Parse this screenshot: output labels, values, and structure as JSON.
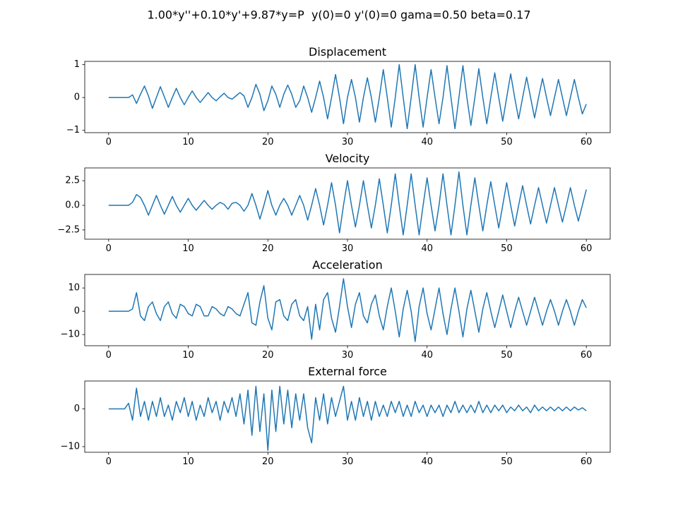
{
  "title": "1.00*y''+0.10*y'+9.87*y=P  y(0)=0 y'(0)=0 gama=0.50 beta=0.17",
  "chart_data": [
    {
      "type": "line",
      "title": "Displacement",
      "color": "#1f77b4",
      "x": [
        0,
        0.5,
        1,
        1.5,
        2,
        2.5,
        3,
        3.5,
        4,
        4.5,
        5,
        5.5,
        6,
        6.5,
        7,
        7.5,
        8,
        8.5,
        9,
        9.5,
        10,
        10.5,
        11,
        11.5,
        12,
        12.5,
        13,
        13.5,
        14,
        14.5,
        15,
        15.5,
        16,
        16.5,
        17,
        17.5,
        18,
        18.5,
        19,
        19.5,
        20,
        20.5,
        21,
        21.5,
        22,
        22.5,
        23,
        23.5,
        24,
        24.5,
        25,
        25.5,
        26,
        26.5,
        27,
        27.5,
        28,
        28.5,
        29,
        29.5,
        30,
        30.5,
        31,
        31.5,
        32,
        32.5,
        33,
        33.5,
        34,
        34.5,
        35,
        35.5,
        36,
        36.5,
        37,
        37.5,
        38,
        38.5,
        39,
        39.5,
        40,
        40.5,
        41,
        41.5,
        42,
        42.5,
        43,
        43.5,
        44,
        44.5,
        45,
        45.5,
        46,
        46.5,
        47,
        47.5,
        48,
        48.5,
        49,
        49.5,
        50,
        50.5,
        51,
        51.5,
        52,
        52.5,
        53,
        53.5,
        54,
        54.5,
        55,
        55.5,
        56,
        56.5,
        57,
        57.5,
        58,
        58.5,
        59,
        59.5,
        60
      ],
      "values": [
        0,
        0,
        0,
        0,
        0,
        0,
        0.08,
        -0.18,
        0.1,
        0.35,
        0.05,
        -0.33,
        0,
        0.33,
        0.02,
        -0.3,
        0,
        0.28,
        0,
        -0.22,
        0,
        0.2,
        0,
        -0.15,
        0,
        0.15,
        0,
        -0.1,
        0.02,
        0.13,
        0,
        -0.05,
        0.05,
        0.15,
        0.05,
        -0.3,
        0,
        0.4,
        0.1,
        -0.4,
        -0.1,
        0.35,
        0.1,
        -0.3,
        0.1,
        0.38,
        0.1,
        -0.3,
        -0.1,
        0.35,
        0,
        -0.45,
        0,
        0.5,
        0,
        -0.65,
        0,
        0.7,
        0,
        -0.8,
        0,
        0.55,
        0,
        -0.75,
        0,
        0.6,
        0,
        -0.75,
        0,
        0.85,
        0,
        -0.9,
        0,
        1.0,
        0,
        -0.95,
        0,
        1.0,
        0,
        -0.9,
        0,
        0.85,
        0,
        -0.8,
        0,
        0.97,
        0,
        -0.95,
        0,
        0.97,
        0,
        -0.85,
        0,
        0.88,
        0,
        -0.8,
        0,
        0.75,
        0,
        -0.72,
        0,
        0.72,
        0,
        -0.65,
        0,
        0.62,
        0,
        -0.62,
        0,
        0.58,
        0,
        -0.55,
        0,
        0.55,
        0,
        -0.55,
        0,
        0.55,
        0,
        -0.5,
        -0.2
      ],
      "xlim": [
        -3,
        63
      ],
      "xticks": [
        0,
        10,
        20,
        30,
        40,
        50,
        60
      ],
      "ylim": [
        -1.07,
        1.1
      ],
      "yticks": [
        {
          "value": -1,
          "label": "−1"
        },
        0,
        1
      ]
    },
    {
      "type": "line",
      "title": "Velocity",
      "color": "#1f77b4",
      "x": [
        0,
        0.5,
        1,
        1.5,
        2,
        2.5,
        3,
        3.5,
        4,
        4.5,
        5,
        5.5,
        6,
        6.5,
        7,
        7.5,
        8,
        8.5,
        9,
        9.5,
        10,
        10.5,
        11,
        11.5,
        12,
        12.5,
        13,
        13.5,
        14,
        14.5,
        15,
        15.5,
        16,
        16.5,
        17,
        17.5,
        18,
        18.5,
        19,
        19.5,
        20,
        20.5,
        21,
        21.5,
        22,
        22.5,
        23,
        23.5,
        24,
        24.5,
        25,
        25.5,
        26,
        26.5,
        27,
        27.5,
        28,
        28.5,
        29,
        29.5,
        30,
        30.5,
        31,
        31.5,
        32,
        32.5,
        33,
        33.5,
        34,
        34.5,
        35,
        35.5,
        36,
        36.5,
        37,
        37.5,
        38,
        38.5,
        39,
        39.5,
        40,
        40.5,
        41,
        41.5,
        42,
        42.5,
        43,
        43.5,
        44,
        44.5,
        45,
        45.5,
        46,
        46.5,
        47,
        47.5,
        48,
        48.5,
        49,
        49.5,
        50,
        50.5,
        51,
        51.5,
        52,
        52.5,
        53,
        53.5,
        54,
        54.5,
        55,
        55.5,
        56,
        56.5,
        57,
        57.5,
        58,
        58.5,
        59,
        59.5,
        60
      ],
      "values": [
        0,
        0,
        0,
        0,
        0,
        0,
        0.3,
        1.1,
        0.8,
        0,
        -1.0,
        0,
        1.0,
        0,
        -0.9,
        0,
        0.9,
        0,
        -0.7,
        0,
        0.7,
        0,
        -0.5,
        0,
        0.5,
        0,
        -0.4,
        0,
        0.3,
        0.1,
        -0.4,
        0.2,
        0.3,
        0,
        -0.6,
        0,
        1.2,
        0,
        -1.4,
        0,
        1.5,
        0,
        -1.0,
        0,
        0.7,
        0,
        -1.0,
        0,
        1.0,
        0,
        -1.5,
        0,
        1.7,
        0,
        -2.0,
        0,
        2.3,
        0,
        -2.8,
        0,
        2.5,
        0,
        -2.2,
        0,
        2.5,
        0,
        -2.3,
        0,
        2.7,
        0,
        -2.8,
        0,
        3.2,
        0,
        -3.0,
        0,
        3.2,
        0,
        -3.0,
        0,
        2.8,
        0,
        -2.6,
        0,
        3.2,
        0,
        -3.0,
        0,
        3.4,
        0,
        -3.0,
        0,
        2.8,
        0,
        -2.6,
        0,
        2.4,
        0,
        -2.3,
        0,
        2.3,
        0,
        -2.1,
        0,
        2.0,
        0,
        -1.9,
        0,
        1.8,
        0,
        -1.8,
        0,
        1.8,
        0,
        -1.7,
        0,
        1.8,
        0,
        -1.6,
        0,
        1.6
      ],
      "xlim": [
        -3,
        63
      ],
      "xticks": [
        0,
        10,
        20,
        30,
        40,
        50,
        60
      ],
      "ylim": [
        -3.44,
        3.8
      ],
      "yticks": [
        {
          "value": -2.5,
          "label": "−2.5"
        },
        {
          "value": 0,
          "label": "0.0"
        },
        2.5
      ]
    },
    {
      "type": "line",
      "title": "Acceleration",
      "color": "#1f77b4",
      "x": [
        0,
        0.5,
        1,
        1.5,
        2,
        2.5,
        3,
        3.5,
        4,
        4.5,
        5,
        5.5,
        6,
        6.5,
        7,
        7.5,
        8,
        8.5,
        9,
        9.5,
        10,
        10.5,
        11,
        11.5,
        12,
        12.5,
        13,
        13.5,
        14,
        14.5,
        15,
        15.5,
        16,
        16.5,
        17,
        17.5,
        18,
        18.5,
        19,
        19.5,
        20,
        20.5,
        21,
        21.5,
        22,
        22.5,
        23,
        23.5,
        24,
        24.5,
        25,
        25.5,
        26,
        26.5,
        27,
        27.5,
        28,
        28.5,
        29,
        29.5,
        30,
        30.5,
        31,
        31.5,
        32,
        32.5,
        33,
        33.5,
        34,
        34.5,
        35,
        35.5,
        36,
        36.5,
        37,
        37.5,
        38,
        38.5,
        39,
        39.5,
        40,
        40.5,
        41,
        41.5,
        42,
        42.5,
        43,
        43.5,
        44,
        44.5,
        45,
        45.5,
        46,
        46.5,
        47,
        47.5,
        48,
        48.5,
        49,
        49.5,
        50,
        50.5,
        51,
        51.5,
        52,
        52.5,
        53,
        53.5,
        54,
        54.5,
        55,
        55.5,
        56,
        56.5,
        57,
        57.5,
        58,
        58.5,
        59,
        59.5,
        60
      ],
      "values": [
        0,
        0,
        0,
        0,
        0,
        0,
        1,
        8,
        -2,
        -4,
        2,
        4,
        -1,
        -4,
        2,
        4,
        -1,
        -3,
        3,
        2,
        -1,
        -2,
        3,
        2,
        -2,
        -2,
        2,
        1,
        -1,
        -2,
        2,
        1,
        -1,
        -2,
        3,
        8,
        -5,
        -6,
        4,
        11,
        -3,
        -8,
        4,
        5,
        -2,
        -4,
        3,
        5,
        -2,
        -4,
        2,
        -12,
        3,
        -8,
        5,
        8,
        -3,
        -9,
        2,
        14,
        2,
        -7,
        3,
        8,
        -2,
        -5,
        3,
        7,
        -2,
        -8,
        2,
        10,
        0,
        -11,
        1,
        9,
        0,
        -13,
        2,
        10,
        -1,
        -8,
        1,
        10,
        -1,
        -10,
        1,
        10,
        0,
        -11,
        1,
        9,
        0,
        -9,
        1,
        8,
        0,
        -7,
        0,
        7,
        0,
        -7,
        0,
        6,
        0,
        -6,
        0,
        6,
        0,
        -6,
        0,
        5,
        0,
        -6,
        0,
        5,
        0,
        -6,
        0,
        5,
        1.5
      ],
      "xlim": [
        -3,
        63
      ],
      "xticks": [
        0,
        10,
        20,
        30,
        40,
        50,
        60
      ],
      "ylim": [
        -14.8,
        15.8
      ],
      "yticks": [
        {
          "value": -10,
          "label": "−10"
        },
        0,
        10
      ]
    },
    {
      "type": "line",
      "title": "External force",
      "color": "#1f77b4",
      "x": [
        0,
        0.5,
        1,
        1.5,
        2,
        2.5,
        3,
        3.5,
        4,
        4.5,
        5,
        5.5,
        6,
        6.5,
        7,
        7.5,
        8,
        8.5,
        9,
        9.5,
        10,
        10.5,
        11,
        11.5,
        12,
        12.5,
        13,
        13.5,
        14,
        14.5,
        15,
        15.5,
        16,
        16.5,
        17,
        17.5,
        18,
        18.5,
        19,
        19.5,
        20,
        20.5,
        21,
        21.5,
        22,
        22.5,
        23,
        23.5,
        24,
        24.5,
        25,
        25.5,
        26,
        26.5,
        27,
        27.5,
        28,
        28.5,
        29,
        29.5,
        30,
        30.5,
        31,
        31.5,
        32,
        32.5,
        33,
        33.5,
        34,
        34.5,
        35,
        35.5,
        36,
        36.5,
        37,
        37.5,
        38,
        38.5,
        39,
        39.5,
        40,
        40.5,
        41,
        41.5,
        42,
        42.5,
        43,
        43.5,
        44,
        44.5,
        45,
        45.5,
        46,
        46.5,
        47,
        47.5,
        48,
        48.5,
        49,
        49.5,
        50,
        50.5,
        51,
        51.5,
        52,
        52.5,
        53,
        53.5,
        54,
        54.5,
        55,
        55.5,
        56,
        56.5,
        57,
        57.5,
        58,
        58.5,
        59,
        59.5,
        60
      ],
      "values": [
        0,
        0,
        0,
        0,
        0,
        1.5,
        -3,
        5.5,
        -2,
        2,
        -3,
        2,
        -2,
        3,
        -2,
        1,
        -3,
        2,
        -1,
        3,
        -2,
        2,
        -3,
        1,
        -2,
        3,
        -1,
        2,
        -3,
        2,
        -1,
        3,
        -2,
        4,
        -4,
        5,
        -7,
        6,
        -6,
        4,
        -11,
        5,
        -6,
        6,
        -4,
        5,
        -5,
        4,
        -3,
        4,
        -5,
        -9,
        3,
        -3,
        4,
        -4,
        3,
        -2,
        2,
        6,
        -3,
        2,
        -3,
        3,
        -2,
        2,
        -3,
        2,
        -2,
        1,
        -2,
        2,
        -1,
        2,
        -2,
        1,
        -2,
        2,
        -1,
        1,
        -2,
        1,
        -1,
        1,
        -2,
        1,
        -1,
        2,
        -1,
        1,
        -1,
        1,
        -1,
        2,
        -1,
        1,
        -1,
        1,
        -0.5,
        1,
        -1,
        0.5,
        -0.5,
        1,
        -0.5,
        0.5,
        -1,
        1,
        -0.5,
        0.5,
        -0.5,
        0.5,
        -0.5,
        0.5,
        -0.5,
        0.5,
        -0.5,
        0.5,
        -0.3,
        0.3,
        -0.5
      ],
      "xlim": [
        -3,
        63
      ],
      "xticks": [
        0,
        10,
        20,
        30,
        40,
        50,
        60
      ],
      "ylim": [
        -11.5,
        7.4
      ],
      "yticks": [
        {
          "value": -10,
          "label": "−10"
        },
        0
      ]
    }
  ]
}
